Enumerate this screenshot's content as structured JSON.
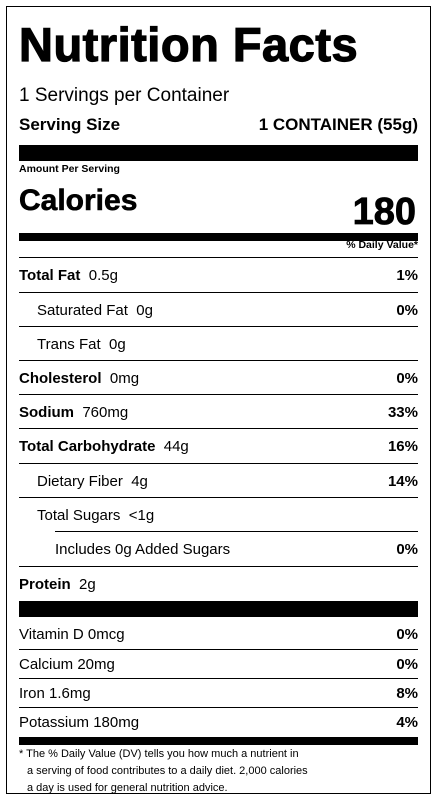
{
  "title": "Nutrition Facts",
  "servings_per_container": "1 Servings per Container",
  "serving_size": {
    "label": "Serving Size",
    "value": "1 CONTAINER (55g)"
  },
  "amount_per_serving": "Amount Per Serving",
  "calories": {
    "label": "Calories",
    "value": "180"
  },
  "daily_value_header": "% Daily Value*",
  "nutrients": [
    {
      "name": "Total Fat",
      "amount": "0.5g",
      "dv": "1%"
    },
    {
      "name": "Saturated Fat",
      "amount": "0g",
      "dv": "0%"
    },
    {
      "name": "Trans Fat",
      "amount": "0g",
      "dv": ""
    },
    {
      "name": "Cholesterol",
      "amount": "0mg",
      "dv": "0%"
    },
    {
      "name": "Sodium",
      "amount": "760mg",
      "dv": "33%"
    },
    {
      "name": "Total Carbohydrate",
      "amount": "44g",
      "dv": "16%"
    },
    {
      "name": "Dietary Fiber",
      "amount": "4g",
      "dv": "14%"
    },
    {
      "name": "Total Sugars",
      "amount": "<1g",
      "dv": ""
    },
    {
      "name": "Includes 0g Added Sugars",
      "amount": "",
      "dv": "0%"
    },
    {
      "name": "Protein",
      "amount": "2g",
      "dv": ""
    }
  ],
  "vitamins": [
    {
      "name": "Vitamin D 0mcg",
      "dv": "0%"
    },
    {
      "name": "Calcium 20mg",
      "dv": "0%"
    },
    {
      "name": "Iron 1.6mg",
      "dv": "8%"
    },
    {
      "name": "Potassium 180mg",
      "dv": "4%"
    }
  ],
  "footnote": [
    "* The % Daily Value (DV) tells you how much a nutrient in",
    "a serving of food contributes to a daily diet. 2,000 calories",
    "a day is used for general nutrition advice."
  ]
}
